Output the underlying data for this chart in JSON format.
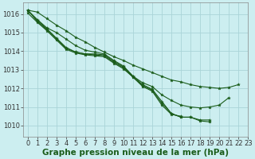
{
  "background_color": "#cceef0",
  "grid_color": "#aad4d8",
  "line_color": "#1a5c1a",
  "xlabel": "Graphe pression niveau de la mer (hPa)",
  "xlabel_fontsize": 7.5,
  "tick_fontsize": 6,
  "xlim": [
    -0.5,
    23
  ],
  "ylim": [
    1009.4,
    1016.6
  ],
  "yticks": [
    1010,
    1011,
    1012,
    1013,
    1014,
    1015,
    1016
  ],
  "xticks": [
    0,
    1,
    2,
    3,
    4,
    5,
    6,
    7,
    8,
    9,
    10,
    11,
    12,
    13,
    14,
    15,
    16,
    17,
    18,
    19,
    20,
    21,
    22,
    23
  ],
  "series": [
    {
      "x": [
        0,
        1,
        2,
        3,
        4,
        5,
        6,
        7,
        8,
        9,
        10,
        11,
        12,
        13,
        14,
        15,
        16,
        17,
        18,
        19,
        20,
        21,
        22
      ],
      "y": [
        1016.2,
        1016.1,
        1015.75,
        1015.4,
        1015.1,
        1014.75,
        1014.5,
        1014.2,
        1013.95,
        1013.7,
        1013.5,
        1013.25,
        1013.05,
        1012.85,
        1012.65,
        1012.45,
        1012.35,
        1012.2,
        1012.1,
        1012.05,
        1012.0,
        1012.05,
        1012.2
      ]
    },
    {
      "x": [
        0,
        1,
        2,
        3,
        4,
        5,
        6,
        7,
        8,
        9,
        10,
        11,
        12,
        13,
        14,
        15,
        16,
        17,
        18,
        19,
        20,
        21
      ],
      "y": [
        1016.2,
        1015.7,
        1015.25,
        1015.0,
        1014.65,
        1014.3,
        1014.05,
        1013.95,
        1013.85,
        1013.5,
        1013.2,
        1012.65,
        1012.3,
        1012.1,
        1011.65,
        1011.35,
        1011.1,
        1011.0,
        1010.95,
        1011.0,
        1011.1,
        1011.5
      ]
    },
    {
      "x": [
        0,
        1,
        2,
        3,
        4,
        5,
        6,
        7,
        8,
        9,
        10,
        11,
        12,
        13,
        14,
        15,
        16,
        17,
        18,
        19
      ],
      "y": [
        1016.2,
        1015.65,
        1015.2,
        1014.7,
        1014.2,
        1013.95,
        1013.85,
        1013.85,
        1013.8,
        1013.45,
        1013.15,
        1012.65,
        1012.2,
        1011.95,
        1011.3,
        1010.65,
        1010.45,
        1010.45,
        1010.3,
        1010.3
      ]
    },
    {
      "x": [
        0,
        1,
        2,
        3,
        4,
        5,
        6,
        7,
        8,
        9,
        10,
        11,
        12,
        13,
        14,
        15,
        16,
        17,
        18,
        19
      ],
      "y": [
        1016.2,
        1015.6,
        1015.15,
        1014.65,
        1014.15,
        1013.95,
        1013.85,
        1013.8,
        1013.75,
        1013.4,
        1013.1,
        1012.6,
        1012.15,
        1011.9,
        1011.2,
        1010.65,
        1010.45,
        1010.45,
        1010.25,
        1010.2
      ]
    },
    {
      "x": [
        0,
        1,
        2,
        3,
        4,
        5,
        6,
        7,
        8,
        9,
        10,
        11,
        12,
        13,
        14,
        15,
        16
      ],
      "y": [
        1016.05,
        1015.55,
        1015.1,
        1014.6,
        1014.1,
        1013.9,
        1013.8,
        1013.75,
        1013.7,
        1013.35,
        1013.05,
        1012.6,
        1012.1,
        1011.85,
        1011.1,
        1010.6,
        1010.5
      ]
    }
  ]
}
